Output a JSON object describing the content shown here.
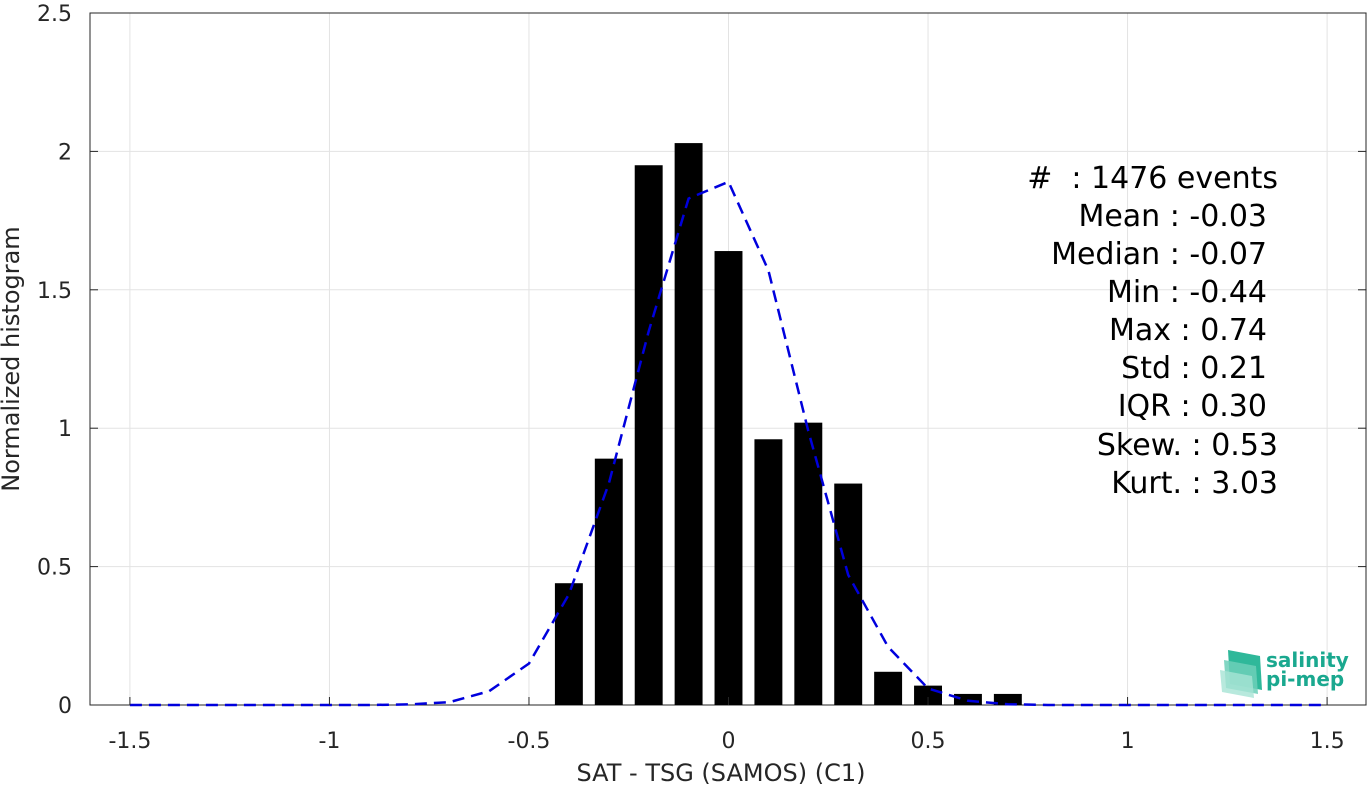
{
  "chart_data": {
    "type": "bar",
    "xlabel": "SAT - TSG (SAMOS) (C1)",
    "ylabel": "Normalized histogram",
    "xlim": [
      -1.6,
      1.6
    ],
    "ylim": [
      0,
      2.5
    ],
    "grid": true,
    "x_ticks": [
      "-1.5",
      "-1",
      "-0.5",
      "0",
      "0.5",
      "1",
      "1.5"
    ],
    "x_tick_values": [
      -1.5,
      -1,
      -0.5,
      0,
      0.5,
      1,
      1.5
    ],
    "y_ticks": [
      "0",
      "0.5",
      "1",
      "1.5",
      "2",
      "2.5"
    ],
    "y_tick_values": [
      0,
      0.5,
      1,
      1.5,
      2,
      2.5
    ],
    "bar_width": 0.07,
    "bars": {
      "x": [
        -0.4,
        -0.3,
        -0.2,
        -0.1,
        0.0,
        0.1,
        0.2,
        0.3,
        0.4,
        0.5,
        0.6,
        0.7
      ],
      "values": [
        0.44,
        0.89,
        1.95,
        2.03,
        1.64,
        0.96,
        1.02,
        0.8,
        0.12,
        0.07,
        0.04,
        0.04
      ],
      "color": "#000000"
    },
    "fit_curve": {
      "style": "dashed",
      "color": "#0000dd",
      "x": [
        -1.5,
        -1.4,
        -1.3,
        -1.2,
        -1.1,
        -1.0,
        -0.9,
        -0.8,
        -0.7,
        -0.6,
        -0.5,
        -0.4,
        -0.3,
        -0.2,
        -0.1,
        0.0,
        0.1,
        0.2,
        0.3,
        0.4,
        0.5,
        0.6,
        0.7,
        0.8,
        0.9,
        1.0,
        1.1,
        1.2,
        1.3,
        1.4,
        1.5
      ],
      "y": [
        0,
        0,
        0,
        0,
        0,
        0,
        0,
        0.002,
        0.01,
        0.05,
        0.15,
        0.4,
        0.8,
        1.35,
        1.83,
        1.89,
        1.57,
        0.99,
        0.47,
        0.21,
        0.06,
        0.015,
        0.003,
        0,
        0,
        0,
        0,
        0,
        0,
        0,
        0
      ]
    },
    "stats": [
      "#  : 1476 events",
      "Mean : -0.03",
      "Median : -0.07",
      "Min : -0.44",
      "Max : 0.74",
      "Std : 0.21",
      "IQR : 0.30",
      "Skew. : 0.53",
      "Kurt. : 3.03"
    ]
  },
  "logo": {
    "line1": "salinity",
    "line2": "pi-mep"
  }
}
